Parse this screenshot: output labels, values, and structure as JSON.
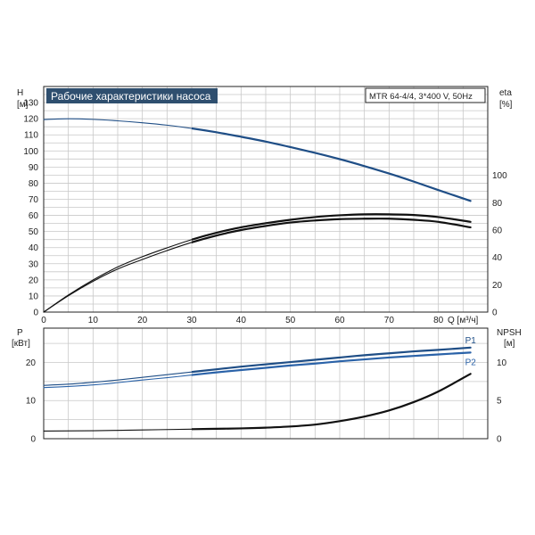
{
  "title": "Рабочие характеристики насоса",
  "model": "MTR 64-4/4, 3*400 V, 50Hz",
  "colors": {
    "grid": "#c8c8c8",
    "frame": "#222222",
    "title_bg": "#2f4f6f",
    "title_fg": "#ffffff",
    "blue": "#1f4e86",
    "blue_light": "#2a62a8",
    "black": "#111111"
  },
  "chart_data": [
    {
      "type": "line",
      "title": "Рабочие характеристики насоса",
      "subtitle": "MTR 64-4/4, 3*400 V, 50Hz",
      "xlabel": "Q [м³/ч]",
      "ylabel_left_top": "H",
      "ylabel_left_bottom": "[м]",
      "ylabel_right_top": "eta",
      "ylabel_right_bottom": "[%]",
      "xlim": [
        0,
        90
      ],
      "ylim_left": [
        0,
        140
      ],
      "ylim_right": [
        0,
        165
      ],
      "x_ticks": [
        0,
        10,
        20,
        30,
        40,
        50,
        60,
        70,
        80
      ],
      "y_ticks_left": [
        0,
        10,
        20,
        30,
        40,
        50,
        60,
        70,
        80,
        90,
        100,
        110,
        120,
        130
      ],
      "y_ticks_right": [
        0,
        20,
        40,
        60,
        80,
        100
      ],
      "grid": true,
      "series": [
        {
          "axis": "left",
          "color": "#1f4e86",
          "x": [
            0,
            5,
            10,
            15,
            20,
            25,
            30,
            35,
            40,
            45,
            50,
            55,
            60,
            65,
            70,
            75,
            80,
            86.5
          ],
          "values": [
            119.5,
            120,
            119.6,
            118.7,
            117.5,
            116,
            114,
            111.6,
            108.8,
            105.8,
            102.4,
            98.8,
            94.9,
            90.6,
            86,
            81,
            75.7,
            69
          ]
        },
        {
          "axis": "right",
          "color": "#111111",
          "x": [
            0,
            5,
            10,
            15,
            20,
            25,
            30,
            35,
            40,
            45,
            50,
            55,
            60,
            65,
            70,
            75,
            80,
            86.5
          ],
          "values": [
            0,
            12,
            22.5,
            31.5,
            38.5,
            45,
            51,
            56,
            60,
            63,
            65.5,
            67,
            68,
            68.3,
            68.3,
            67.5,
            66,
            62
          ]
        },
        {
          "axis": "right",
          "color": "#111111",
          "x": [
            0,
            5,
            10,
            15,
            20,
            25,
            30,
            35,
            40,
            45,
            50,
            55,
            60,
            65,
            70,
            75,
            80,
            86.5
          ],
          "values": [
            0,
            12.5,
            23.5,
            33,
            40.5,
            47,
            53,
            58,
            62,
            65,
            67.5,
            69.5,
            70.8,
            71.5,
            71.5,
            71,
            69.5,
            66
          ]
        }
      ]
    },
    {
      "type": "line",
      "xlabel": "",
      "ylabel_left_top": "P",
      "ylabel_left_bottom": "[кВт]",
      "ylabel_right_top": "NPSH",
      "ylabel_right_bottom": "[м]",
      "xlim": [
        0,
        90
      ],
      "ylim_left": [
        0,
        29
      ],
      "ylim_right": [
        0,
        14.5
      ],
      "y_ticks_left": [
        0,
        10,
        20
      ],
      "y_ticks_right": [
        0,
        5,
        10
      ],
      "grid": true,
      "series": [
        {
          "name": "P1",
          "axis": "left",
          "color": "#1f4e86",
          "x": [
            0,
            5,
            10,
            15,
            20,
            25,
            30,
            35,
            40,
            45,
            50,
            55,
            60,
            65,
            70,
            75,
            80,
            86.5
          ],
          "values": [
            14,
            14.3,
            14.8,
            15.4,
            16.1,
            16.8,
            17.5,
            18.2,
            18.9,
            19.5,
            20.1,
            20.7,
            21.3,
            21.9,
            22.4,
            22.9,
            23.3,
            23.9
          ]
        },
        {
          "name": "P2",
          "axis": "left",
          "color": "#2a62a8",
          "x": [
            0,
            5,
            10,
            15,
            20,
            25,
            30,
            35,
            40,
            45,
            50,
            55,
            60,
            65,
            70,
            75,
            80,
            86.5
          ],
          "values": [
            13.4,
            13.7,
            14.1,
            14.7,
            15.4,
            16,
            16.7,
            17.4,
            18,
            18.6,
            19.2,
            19.7,
            20.3,
            20.8,
            21.3,
            21.7,
            22.1,
            22.6
          ]
        },
        {
          "axis": "right",
          "color": "#111111",
          "x": [
            0,
            10,
            20,
            30,
            35,
            40,
            45,
            50,
            55,
            60,
            65,
            70,
            75,
            80,
            86.5
          ],
          "values": [
            1,
            1.05,
            1.15,
            1.25,
            1.3,
            1.35,
            1.45,
            1.6,
            1.85,
            2.3,
            2.9,
            3.7,
            4.8,
            6.2,
            8.5
          ]
        }
      ]
    }
  ]
}
